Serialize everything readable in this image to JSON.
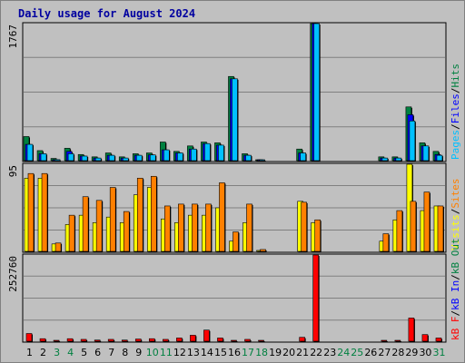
{
  "chart_data": {
    "type": "bar",
    "title": "Daily usage for August 2024",
    "x": [
      "1",
      "2",
      "3",
      "4",
      "5",
      "6",
      "7",
      "8",
      "9",
      "10",
      "11",
      "12",
      "13",
      "14",
      "15",
      "16",
      "17",
      "18",
      "19",
      "20",
      "21",
      "22",
      "23",
      "24",
      "25",
      "26",
      "27",
      "28",
      "29",
      "30",
      "31"
    ],
    "weekend_days": [
      "3",
      "4",
      "10",
      "11",
      "17",
      "18",
      "24",
      "25",
      "31"
    ],
    "panels": [
      {
        "id": "top",
        "max_label": "1767",
        "ylim": [
          0,
          1767
        ],
        "legend": [
          {
            "text": "Pages",
            "color": "#00c0ff"
          },
          {
            "text": "/",
            "color": "#000000"
          },
          {
            "text": "Files",
            "color": "#0000ff"
          },
          {
            "text": "/",
            "color": "#000000"
          },
          {
            "text": "Hits",
            "color": "#008040"
          }
        ],
        "series": [
          {
            "name": "Hits",
            "color": "#008040",
            "values": [
              320,
              140,
              40,
              170,
              90,
              60,
              110,
              60,
              100,
              110,
              250,
              130,
              200,
              250,
              240,
              1090,
              100,
              15,
              0,
              0,
              160,
              1767,
              0,
              0,
              0,
              0,
              60,
              60,
              700,
              240,
              130
            ]
          },
          {
            "name": "Files",
            "color": "#0000ff",
            "values": [
              220,
              100,
              25,
              130,
              70,
              45,
              80,
              45,
              80,
              85,
              150,
              110,
              160,
              230,
              210,
              1060,
              80,
              8,
              0,
              0,
              110,
              1767,
              0,
              0,
              0,
              0,
              45,
              45,
              600,
              200,
              90
            ]
          },
          {
            "name": "Pages",
            "color": "#00c0ff",
            "values": [
              220,
              100,
              25,
              100,
              70,
              45,
              80,
              45,
              80,
              85,
              150,
              110,
              160,
              230,
              210,
              1060,
              80,
              8,
              0,
              0,
              110,
              1767,
              0,
              0,
              0,
              0,
              45,
              45,
              520,
              200,
              80
            ]
          }
        ]
      },
      {
        "id": "mid",
        "max_label": "95",
        "ylim": [
          0,
          95
        ],
        "legend": [
          {
            "text": "Visits",
            "color": "#ffff00"
          },
          {
            "text": "/",
            "color": "#000000"
          },
          {
            "text": "Sites",
            "color": "#ff8000"
          }
        ],
        "series": [
          {
            "name": "Visits",
            "color": "#ffff00",
            "values": [
              80,
              80,
              9,
              30,
              40,
              32,
              38,
              32,
              62,
              70,
              36,
              32,
              40,
              40,
              48,
              12,
              32,
              2,
              0,
              0,
              55,
              32,
              0,
              0,
              0,
              0,
              12,
              35,
              95,
              45,
              50
            ]
          },
          {
            "name": "Sites",
            "color": "#ff8000",
            "values": [
              85,
              85,
              10,
              40,
              60,
              56,
              70,
              44,
              80,
              82,
              50,
              52,
              52,
              52,
              75,
              22,
              52,
              3,
              0,
              0,
              54,
              35,
              0,
              0,
              0,
              0,
              20,
              45,
              55,
              65,
              50
            ]
          }
        ]
      },
      {
        "id": "bottom",
        "max_label": "252760",
        "ylim": [
          0,
          252760
        ],
        "legend": [
          {
            "text": "kB F",
            "color": "#ff0000"
          },
          {
            "text": "/",
            "color": "#000000"
          },
          {
            "text": "kB In",
            "color": "#0000ff"
          },
          {
            "text": "/",
            "color": "#000000"
          },
          {
            "text": "kB Out",
            "color": "#008040"
          }
        ],
        "series": [
          {
            "name": "kB F",
            "color": "#ff0000",
            "values": [
              25000,
              10000,
              3000,
              10000,
              8000,
              6000,
              8000,
              6000,
              9000,
              10000,
              8000,
              12000,
              20000,
              35000,
              12000,
              5000,
              8000,
              2000,
              0,
              0,
              14000,
              252760,
              0,
              0,
              0,
              0,
              4000,
              4000,
              70000,
              22000,
              12000
            ]
          }
        ]
      }
    ]
  }
}
